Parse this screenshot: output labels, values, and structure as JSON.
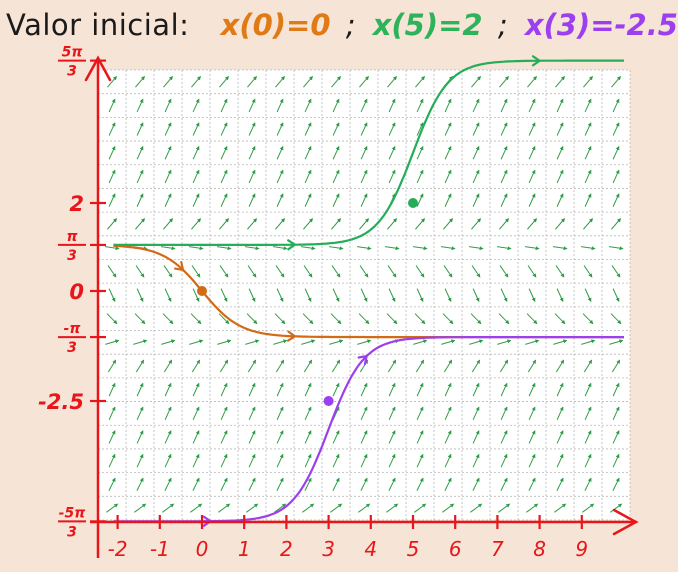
{
  "title": {
    "label": "Valor inicial:",
    "cond_orange": "x(0)=0",
    "sep1": ";",
    "cond_green": "x(5)=2",
    "sep2": ";",
    "cond_purple": "x(3)=-2.5"
  },
  "colors": {
    "background": "#f6e4d6",
    "axis": "#e8161a",
    "field_arrows": "#2f9d47",
    "grid": "#b8b8b8",
    "orange": "#d26a16",
    "green": "#25ad5a",
    "purple": "#9b3ff0"
  },
  "axes": {
    "x_ticks": [
      "-2",
      "-1",
      "0",
      "1",
      "2",
      "3",
      "4",
      "5",
      "6",
      "7",
      "8",
      "9"
    ],
    "y_ticks": [
      {
        "num": "5π",
        "den": "3",
        "value": 5.236
      },
      {
        "num": "",
        "den": "",
        "value": 2,
        "text": "2"
      },
      {
        "num": "π",
        "den": "3",
        "value": 1.047
      },
      {
        "num": "",
        "den": "",
        "value": 0,
        "text": "0"
      },
      {
        "num": "-π",
        "den": "3",
        "value": -1.047
      },
      {
        "num": "",
        "den": "",
        "value": -2.5,
        "text": "-2.5"
      },
      {
        "num": "-5π",
        "den": "3",
        "value": -5.236
      }
    ]
  },
  "curves": [
    {
      "id": "orange",
      "initial_t": 0,
      "initial_x": 0,
      "start_x": 1.047,
      "end_x": -1.047
    },
    {
      "id": "green",
      "initial_t": 5,
      "initial_x": 2,
      "start_x": 1.047,
      "end_x": 5.236
    },
    {
      "id": "purple",
      "initial_t": 3,
      "initial_x": -2.5,
      "start_x": -5.236,
      "end_x": -1.047
    }
  ]
}
